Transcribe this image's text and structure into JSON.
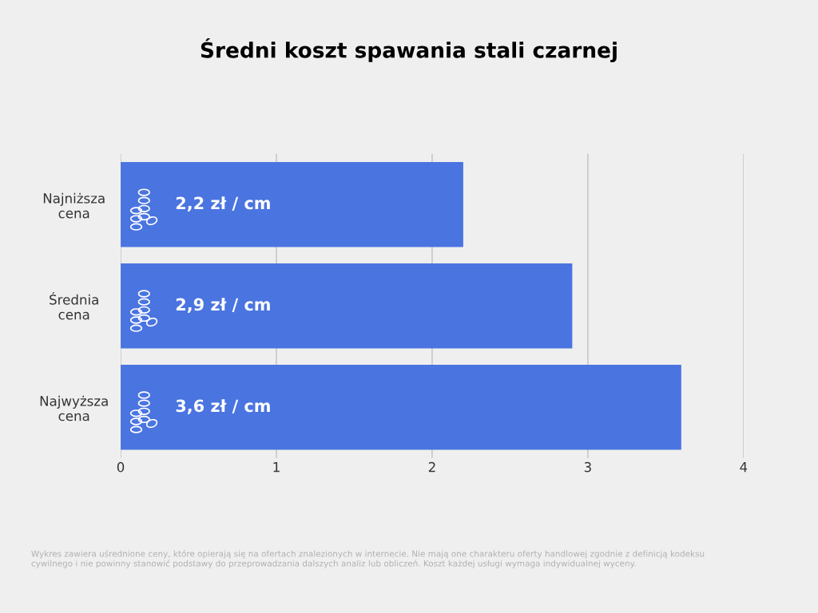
{
  "chart_data": {
    "type": "bar",
    "orientation": "horizontal",
    "title": "Średni koszt spawania stali czarnej",
    "categories": [
      "Najniższa\ncena",
      "Średnia\ncena",
      "Najwyższa\ncena"
    ],
    "values": [
      2.2,
      2.9,
      3.6
    ],
    "value_labels": [
      "2,2 zł / cm",
      "2,9 zł / cm",
      "3,6 zł / cm"
    ],
    "color": "#4a74e0",
    "xlim": [
      0,
      4
    ],
    "xticks": [
      0,
      1,
      2,
      3,
      4
    ],
    "grid": "x",
    "annotations": [
      "Wykres zawiera uśrednione ceny, które opierają się na ofertach znalezionych w internecie. Nie mają one charakteru oferty handlowej zgodnie z definicją kodeksu cywilnego i nie powinny stanowić podstawy do przeprowadzania dalszych analiz lub obliczeń. Koszt każdej usługi wymaga indywidualnej wyceny."
    ]
  }
}
